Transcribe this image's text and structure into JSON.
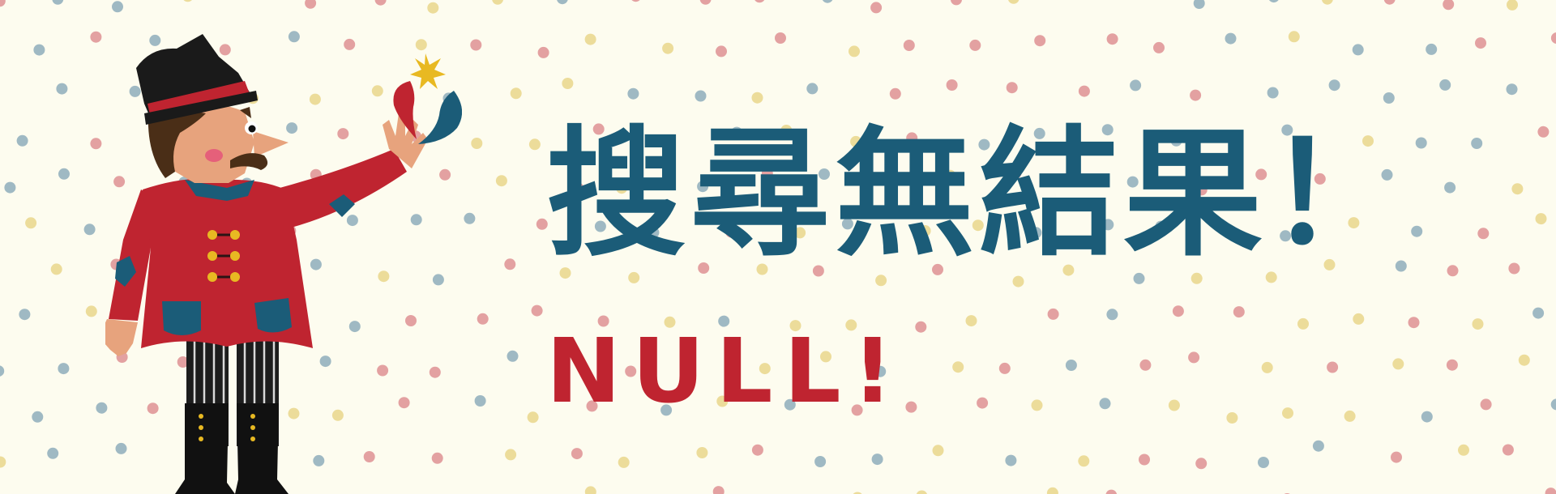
{
  "banner": {
    "title": "搜尋無結果！",
    "subtitle": "NULL!"
  },
  "colors": {
    "background": "#fdfcef",
    "title": "#1b5c78",
    "subtitle": "#bf2430",
    "dot_red": "#e3a1a1",
    "dot_blue": "#9fb9c3",
    "dot_yellow": "#ecdc9a",
    "coat": "#bf2430",
    "hat": "#1a1a1a",
    "skin": "#e7a37d",
    "button": "#e8b922"
  },
  "icons": {
    "character": "ringmaster-illustration",
    "decor": "polka-dot-pattern",
    "sparkle": "sparkle-icon"
  }
}
